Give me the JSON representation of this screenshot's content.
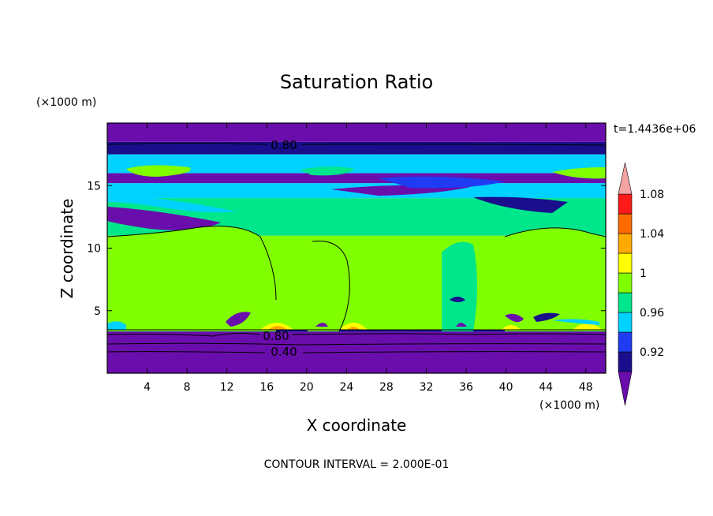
{
  "chart_data": {
    "type": "heatmap",
    "title": "Saturation Ratio",
    "xlabel": "X coordinate",
    "ylabel": "Z coordinate",
    "x_unit": "(×1000 m)",
    "y_unit": "(×1000 m)",
    "xlim": [
      0,
      50
    ],
    "ylim": [
      0,
      20
    ],
    "x_ticks": [
      "4",
      "8",
      "12",
      "16",
      "20",
      "24",
      "28",
      "32",
      "36",
      "40",
      "44",
      "48"
    ],
    "y_ticks": [
      "5",
      "10",
      "15"
    ],
    "time_label": "t=1.4436e+06",
    "contour_interval_label": "CONTOUR INTERVAL = 2.000E-01",
    "contour_labels": [
      "0.80",
      "0.80",
      "0.40"
    ],
    "colorbar": {
      "levels": [
        0.92,
        0.94,
        0.96,
        0.98,
        1.0,
        1.02,
        1.04,
        1.06,
        1.08,
        1.1
      ],
      "colors": [
        "#6a0dad",
        "#1a0e8c",
        "#1f3cf2",
        "#00d2ff",
        "#00e68a",
        "#80ff00",
        "#ffff00",
        "#ffaa00",
        "#ff6a00",
        "#ff1a1a",
        "#f4a3a3"
      ],
      "tick_labels": [
        "0.92",
        "0.96",
        "1",
        "1.04",
        "1.08"
      ]
    },
    "bands": [
      {
        "z_from": 0.0,
        "z_to": 3.3,
        "color_index": 0
      },
      {
        "z_from": 3.3,
        "z_to": 3.5,
        "color_index": 1
      },
      {
        "z_from": 3.5,
        "z_to": 11.0,
        "color_index": 5
      },
      {
        "z_from": 11.0,
        "z_to": 14.0,
        "color_index": 4
      },
      {
        "z_from": 14.0,
        "z_to": 15.2,
        "color_index": 3
      },
      {
        "z_from": 15.2,
        "z_to": 16.0,
        "color_index": 0
      },
      {
        "z_from": 16.0,
        "z_to": 17.5,
        "color_index": 3
      },
      {
        "z_from": 17.5,
        "z_to": 18.5,
        "color_index": 1
      },
      {
        "z_from": 18.5,
        "z_to": 20.0,
        "color_index": 0
      }
    ]
  }
}
